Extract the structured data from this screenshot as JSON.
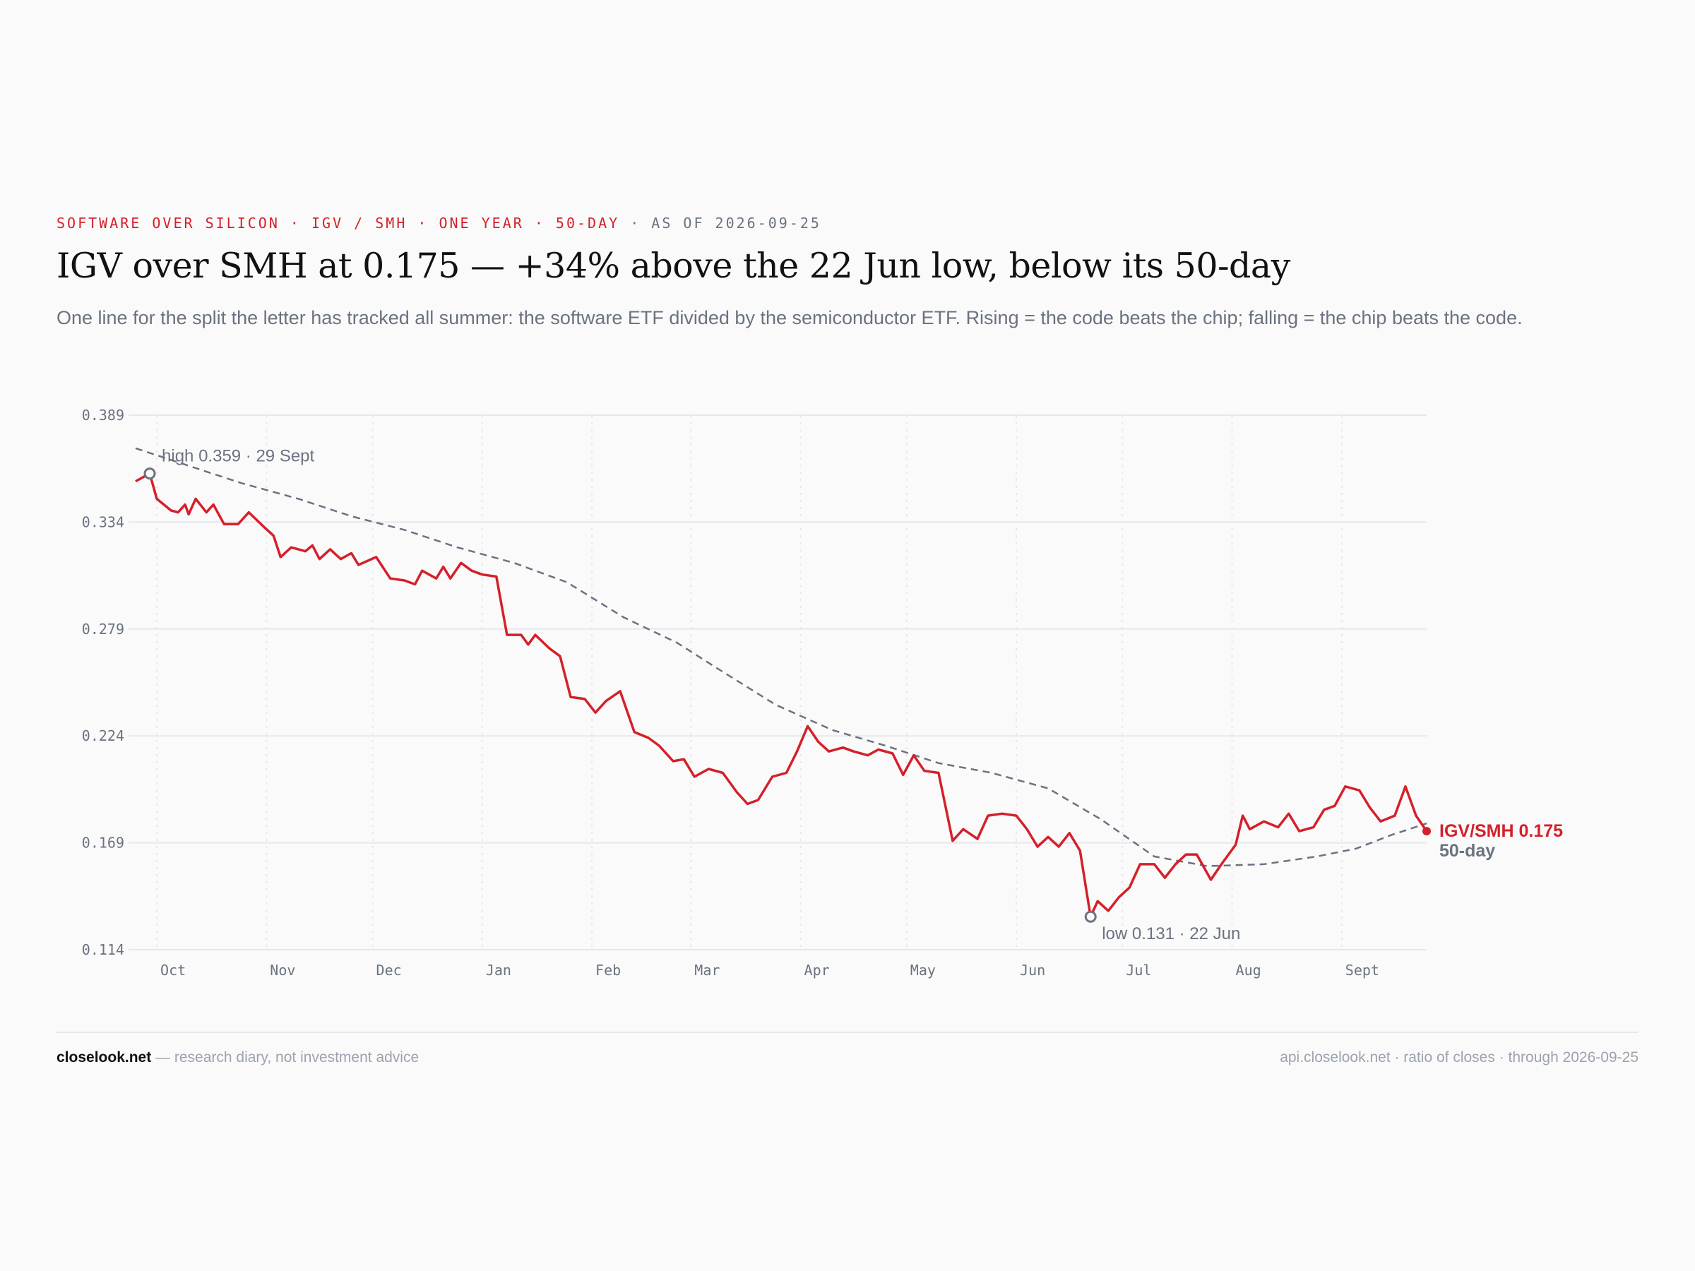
{
  "header": {
    "kicker_red": "SOFTWARE OVER SILICON · IGV / SMH · ONE YEAR · 50-DAY",
    "kicker_gray": " · AS OF 2026-09-25",
    "title": "IGV over SMH at 0.175 — +34% above the 22 Jun low, below its 50-day",
    "subtitle": "One line for the split the letter has tracked all summer: the software ETF divided by the semiconductor ETF. Rising = the code beats the chip; falling = the chip beats the code."
  },
  "footer": {
    "brand": "closelook.net",
    "tagline": " — research diary, not investment advice",
    "source": "api.closelook.net · ratio of closes · through 2026-09-25"
  },
  "colors": {
    "ratio_line": "#d4202a",
    "ma_line": "#6b7280",
    "grid": "#e5e7eb"
  },
  "chart_data": {
    "type": "line",
    "ylim": [
      0.114,
      0.389
    ],
    "y_ticks": [
      "0.389",
      "0.334",
      "0.279",
      "0.224",
      "0.169",
      "0.114"
    ],
    "x_ticks": [
      "Oct",
      "Nov",
      "Dec",
      "Jan",
      "Feb",
      "Mar",
      "Apr",
      "May",
      "Jun",
      "Jul",
      "Aug",
      "Sept"
    ],
    "grid": true,
    "annotations": {
      "high": "high 0.359 · 29 Sept",
      "low": "low 0.131 · 22 Jun"
    },
    "end_labels": {
      "ratio": "IGV/SMH 0.175",
      "ma": "50-day"
    },
    "series": [
      {
        "name": "IGV/SMH",
        "style": "solid",
        "points": [
          [
            "2025-09-25",
            0.355
          ],
          [
            "2025-09-29",
            0.359
          ],
          [
            "2025-10-01",
            0.346
          ],
          [
            "2025-10-05",
            0.34
          ],
          [
            "2025-10-07",
            0.339
          ],
          [
            "2025-10-09",
            0.343
          ],
          [
            "2025-10-10",
            0.338
          ],
          [
            "2025-10-12",
            0.346
          ],
          [
            "2025-10-15",
            0.339
          ],
          [
            "2025-10-17",
            0.343
          ],
          [
            "2025-10-20",
            0.333
          ],
          [
            "2025-10-24",
            0.333
          ],
          [
            "2025-10-27",
            0.339
          ],
          [
            "2025-10-31",
            0.332
          ],
          [
            "2025-11-03",
            0.327
          ],
          [
            "2025-11-05",
            0.316
          ],
          [
            "2025-11-08",
            0.321
          ],
          [
            "2025-11-12",
            0.319
          ],
          [
            "2025-11-14",
            0.322
          ],
          [
            "2025-11-16",
            0.315
          ],
          [
            "2025-11-19",
            0.32
          ],
          [
            "2025-11-22",
            0.315
          ],
          [
            "2025-11-25",
            0.318
          ],
          [
            "2025-11-27",
            0.312
          ],
          [
            "2025-12-02",
            0.316
          ],
          [
            "2025-12-06",
            0.305
          ],
          [
            "2025-12-10",
            0.304
          ],
          [
            "2025-12-13",
            0.302
          ],
          [
            "2025-12-15",
            0.309
          ],
          [
            "2025-12-19",
            0.305
          ],
          [
            "2025-12-21",
            0.311
          ],
          [
            "2025-12-23",
            0.305
          ],
          [
            "2025-12-26",
            0.313
          ],
          [
            "2025-12-29",
            0.309
          ],
          [
            "2026-01-01",
            0.307
          ],
          [
            "2026-01-05",
            0.306
          ],
          [
            "2026-01-08",
            0.276
          ],
          [
            "2026-01-12",
            0.276
          ],
          [
            "2026-01-14",
            0.271
          ],
          [
            "2026-01-16",
            0.276
          ],
          [
            "2026-01-20",
            0.269
          ],
          [
            "2026-01-23",
            0.265
          ],
          [
            "2026-01-26",
            0.244
          ],
          [
            "2026-01-30",
            0.243
          ],
          [
            "2026-02-02",
            0.236
          ],
          [
            "2026-02-05",
            0.242
          ],
          [
            "2026-02-09",
            0.247
          ],
          [
            "2026-02-13",
            0.226
          ],
          [
            "2026-02-17",
            0.223
          ],
          [
            "2026-02-20",
            0.219
          ],
          [
            "2026-02-24",
            0.211
          ],
          [
            "2026-02-27",
            0.212
          ],
          [
            "2026-03-02",
            0.203
          ],
          [
            "2026-03-06",
            0.207
          ],
          [
            "2026-03-10",
            0.205
          ],
          [
            "2026-03-14",
            0.195
          ],
          [
            "2026-03-17",
            0.189
          ],
          [
            "2026-03-20",
            0.191
          ],
          [
            "2026-03-24",
            0.203
          ],
          [
            "2026-03-28",
            0.205
          ],
          [
            "2026-03-31",
            0.216
          ],
          [
            "2026-04-03",
            0.229
          ],
          [
            "2026-04-06",
            0.221
          ],
          [
            "2026-04-09",
            0.216
          ],
          [
            "2026-04-13",
            0.218
          ],
          [
            "2026-04-16",
            0.216
          ],
          [
            "2026-04-20",
            0.214
          ],
          [
            "2026-04-23",
            0.217
          ],
          [
            "2026-04-27",
            0.215
          ],
          [
            "2026-04-30",
            0.204
          ],
          [
            "2026-05-03",
            0.214
          ],
          [
            "2026-05-06",
            0.206
          ],
          [
            "2026-05-10",
            0.205
          ],
          [
            "2026-05-14",
            0.17
          ],
          [
            "2026-05-17",
            0.176
          ],
          [
            "2026-05-21",
            0.171
          ],
          [
            "2026-05-24",
            0.183
          ],
          [
            "2026-05-28",
            0.184
          ],
          [
            "2026-06-01",
            0.183
          ],
          [
            "2026-06-04",
            0.176
          ],
          [
            "2026-06-07",
            0.167
          ],
          [
            "2026-06-10",
            0.172
          ],
          [
            "2026-06-13",
            0.167
          ],
          [
            "2026-06-16",
            0.174
          ],
          [
            "2026-06-19",
            0.165
          ],
          [
            "2026-06-22",
            0.131
          ],
          [
            "2026-06-24",
            0.139
          ],
          [
            "2026-06-27",
            0.134
          ],
          [
            "2026-06-30",
            0.141
          ],
          [
            "2026-07-03",
            0.146
          ],
          [
            "2026-07-06",
            0.158
          ],
          [
            "2026-07-10",
            0.158
          ],
          [
            "2026-07-13",
            0.151
          ],
          [
            "2026-07-16",
            0.158
          ],
          [
            "2026-07-19",
            0.163
          ],
          [
            "2026-07-22",
            0.163
          ],
          [
            "2026-07-26",
            0.15
          ],
          [
            "2026-07-29",
            0.158
          ],
          [
            "2026-08-02",
            0.168
          ],
          [
            "2026-08-04",
            0.183
          ],
          [
            "2026-08-06",
            0.176
          ],
          [
            "2026-08-10",
            0.18
          ],
          [
            "2026-08-14",
            0.177
          ],
          [
            "2026-08-17",
            0.184
          ],
          [
            "2026-08-20",
            0.175
          ],
          [
            "2026-08-24",
            0.177
          ],
          [
            "2026-08-27",
            0.186
          ],
          [
            "2026-08-30",
            0.188
          ],
          [
            "2026-09-02",
            0.198
          ],
          [
            "2026-09-06",
            0.196
          ],
          [
            "2026-09-09",
            0.187
          ],
          [
            "2026-09-12",
            0.18
          ],
          [
            "2026-09-16",
            0.183
          ],
          [
            "2026-09-19",
            0.198
          ],
          [
            "2026-09-22",
            0.183
          ],
          [
            "2026-09-25",
            0.175
          ]
        ]
      },
      {
        "name": "50-day",
        "style": "dashed",
        "points": [
          [
            "2025-09-25",
            0.372
          ],
          [
            "2025-10-10",
            0.363
          ],
          [
            "2025-10-25",
            0.354
          ],
          [
            "2025-11-10",
            0.346
          ],
          [
            "2025-11-25",
            0.337
          ],
          [
            "2025-12-10",
            0.33
          ],
          [
            "2025-12-25",
            0.321
          ],
          [
            "2026-01-10",
            0.313
          ],
          [
            "2026-01-25",
            0.303
          ],
          [
            "2026-02-10",
            0.285
          ],
          [
            "2026-02-25",
            0.272
          ],
          [
            "2026-03-10",
            0.257
          ],
          [
            "2026-03-25",
            0.24
          ],
          [
            "2026-04-10",
            0.227
          ],
          [
            "2026-04-25",
            0.219
          ],
          [
            "2026-05-10",
            0.21
          ],
          [
            "2026-05-25",
            0.205
          ],
          [
            "2026-06-10",
            0.197
          ],
          [
            "2026-06-25",
            0.181
          ],
          [
            "2026-07-10",
            0.162
          ],
          [
            "2026-07-25",
            0.157
          ],
          [
            "2026-08-10",
            0.158
          ],
          [
            "2026-08-25",
            0.162
          ],
          [
            "2026-09-05",
            0.166
          ],
          [
            "2026-09-15",
            0.173
          ],
          [
            "2026-09-25",
            0.179
          ]
        ]
      }
    ]
  }
}
